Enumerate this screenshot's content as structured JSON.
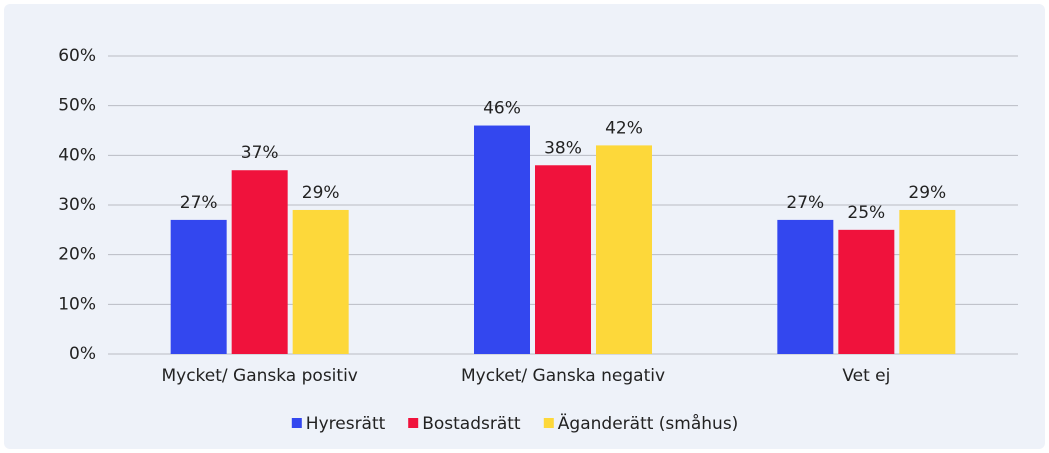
{
  "chart_data": {
    "type": "bar",
    "categories": [
      "Mycket/ Ganska positiv",
      "Mycket/ Ganska negativ",
      "Vet ej"
    ],
    "series": [
      {
        "name": "Hyresrätt",
        "color": "#3347ef",
        "values": [
          27,
          46,
          27
        ],
        "value_labels": [
          "27%",
          "46%",
          "27%"
        ]
      },
      {
        "name": "Bostadsrätt",
        "color": "#f0123c",
        "values": [
          37,
          38,
          25
        ],
        "value_labels": [
          "37%",
          "38%",
          "25%"
        ]
      },
      {
        "name": "Äganderätt (småhus)",
        "color": "#fdd83a",
        "values": [
          29,
          42,
          29
        ],
        "value_labels": [
          "29%",
          "42%",
          "29%"
        ]
      }
    ],
    "ylim": [
      0,
      60
    ],
    "yticks": [
      {
        "value": 0,
        "label": "0%"
      },
      {
        "value": 10,
        "label": "10%"
      },
      {
        "value": 20,
        "label": "20%"
      },
      {
        "value": 30,
        "label": "30%"
      },
      {
        "value": 40,
        "label": "40%"
      },
      {
        "value": 50,
        "label": "50%"
      },
      {
        "value": 60,
        "label": "60%"
      }
    ],
    "grid": true,
    "legend": "bottom"
  }
}
